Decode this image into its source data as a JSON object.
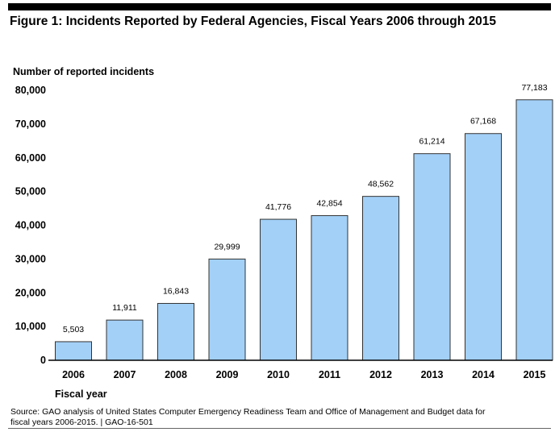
{
  "figure_title": "Figure 1: Incidents Reported by Federal Agencies, Fiscal Years 2006 through 2015",
  "source_line1": "Source: GAO analysis of United States Computer Emergency Readiness Team and Office of Management and Budget data for",
  "source_line2": "fiscal years 2006-2015.  |  GAO-16-501",
  "colors": {
    "bar_fill": "#a3d0f7",
    "bar_stroke": "#333333",
    "axis": "#000000"
  },
  "chart_data": {
    "type": "bar",
    "title": "Incidents Reported by Federal Agencies, Fiscal Years 2006 through 2015",
    "ylabel": "Number of reported incidents",
    "xlabel": "Fiscal year",
    "categories": [
      "2006",
      "2007",
      "2008",
      "2009",
      "2010",
      "2011",
      "2012",
      "2013",
      "2014",
      "2015"
    ],
    "values": [
      5503,
      11911,
      16843,
      29999,
      41776,
      42854,
      48562,
      61214,
      67168,
      77183
    ],
    "value_labels": [
      "5,503",
      "11,911",
      "16,843",
      "29,999",
      "41,776",
      "42,854",
      "48,562",
      "61,214",
      "67,168",
      "77,183"
    ],
    "ylim": [
      0,
      80000
    ],
    "yticks": [
      0,
      10000,
      20000,
      30000,
      40000,
      50000,
      60000,
      70000,
      80000
    ],
    "ytick_labels": [
      "0",
      "10,000",
      "20,000",
      "30,000",
      "40,000",
      "50,000",
      "60,000",
      "70,000",
      "80,000"
    ],
    "grid": false,
    "legend": "none"
  }
}
